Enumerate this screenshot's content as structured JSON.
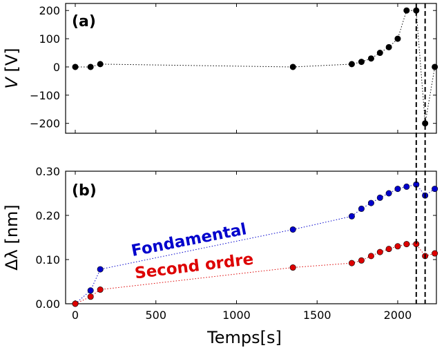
{
  "chart_data": [
    {
      "type": "scatter",
      "panel_label": "(a)",
      "ylabel": "V [V]",
      "ylabel_symbol": "V",
      "ylabel_unit": " [V]",
      "xlim": [
        -60,
        2240
      ],
      "ylim": [
        -235,
        225
      ],
      "yticks": [
        200,
        100,
        0,
        -100,
        -200
      ],
      "ytick_labels": [
        "200",
        "100",
        "0",
        "−100",
        "−200"
      ],
      "series": [
        {
          "color": "#000000",
          "x": [
            0,
            95,
            155,
            1350,
            1715,
            1775,
            1835,
            1890,
            1945,
            2000,
            2055,
            2115,
            2170,
            2230
          ],
          "y": [
            0,
            0,
            10,
            0,
            10,
            18,
            30,
            50,
            70,
            100,
            200,
            200,
            -200,
            0
          ]
        }
      ],
      "vlines": [
        2115,
        2170
      ]
    },
    {
      "type": "scatter",
      "panel_label": "(b)",
      "ylabel": "Δλ [nm]",
      "xlabel": "Temps[s]",
      "xlim": [
        -60,
        2240
      ],
      "ylim": [
        0,
        0.3
      ],
      "xticks": [
        0,
        500,
        1000,
        1500,
        2000
      ],
      "xtick_labels": [
        "0",
        "500",
        "1000",
        "1500",
        "2000"
      ],
      "yticks": [
        0.0,
        0.1,
        0.2,
        0.3
      ],
      "ytick_labels": [
        "0.00",
        "0.10",
        "0.20",
        "0.30"
      ],
      "series": [
        {
          "name": "Fondamental",
          "color": "#0000cc",
          "x": [
            0,
            95,
            155,
            1350,
            1715,
            1775,
            1835,
            1890,
            1945,
            2000,
            2055,
            2115,
            2170,
            2230
          ],
          "y": [
            0,
            0.03,
            0.078,
            0.168,
            0.198,
            0.215,
            0.228,
            0.24,
            0.25,
            0.26,
            0.265,
            0.27,
            0.245,
            0.26
          ]
        },
        {
          "name": "Second ordre",
          "color": "#dd0000",
          "x": [
            0,
            95,
            155,
            1350,
            1715,
            1775,
            1835,
            1890,
            1945,
            2000,
            2055,
            2115,
            2170,
            2230
          ],
          "y": [
            0,
            0.016,
            0.032,
            0.082,
            0.092,
            0.098,
            0.108,
            0.117,
            0.124,
            0.13,
            0.135,
            0.135,
            0.108,
            0.114
          ]
        }
      ],
      "vlines": [
        2115,
        2170
      ]
    }
  ]
}
